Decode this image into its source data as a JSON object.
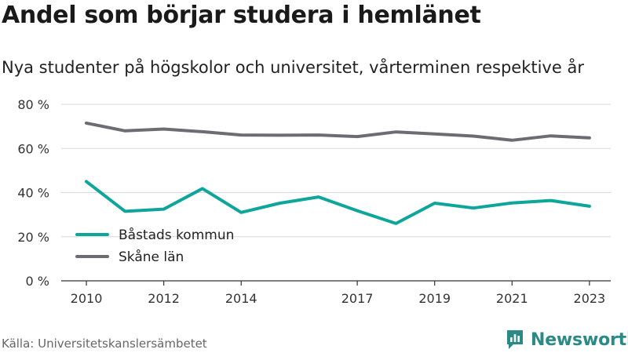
{
  "title": "Andel som börjar studera i hemlänet",
  "subtitle": "Nya studenter på högskolor och universitet, vårterminen respektive år",
  "source": "Källa: Universitetskanslersämbetet",
  "brand": "Newsworthy",
  "colors": {
    "accent": "#0ea59b",
    "series2": "#6d6c72",
    "brand": "#2a8a86"
  },
  "chart_data": {
    "type": "line",
    "x": [
      2010,
      2011,
      2012,
      2013,
      2014,
      2015,
      2016,
      2017,
      2018,
      2019,
      2020,
      2021,
      2022,
      2023
    ],
    "x_tick_labels": [
      "2010",
      "2012",
      "2014",
      "2017",
      "2019",
      "2021",
      "2023"
    ],
    "y_tick_labels": [
      "0 %",
      "20 %",
      "40 %",
      "60 %",
      "80 %"
    ],
    "y_ticks": [
      0,
      20,
      40,
      60,
      80
    ],
    "ylim": [
      0,
      80
    ],
    "grid": true,
    "legend_position": "bottom-left",
    "series": [
      {
        "name": "Båstads kommun",
        "color": "#0ea59b",
        "values": [
          45,
          31.5,
          32.5,
          41.8,
          31,
          35.2,
          38,
          31.8,
          26,
          35.2,
          33,
          35.3,
          36.4,
          33.8
        ]
      },
      {
        "name": "Skåne län",
        "color": "#6d6c72",
        "values": [
          71.5,
          68,
          68.8,
          67.6,
          66.1,
          66,
          66.1,
          65.4,
          67.5,
          66.6,
          65.6,
          63.7,
          65.7,
          64.8
        ]
      }
    ]
  }
}
